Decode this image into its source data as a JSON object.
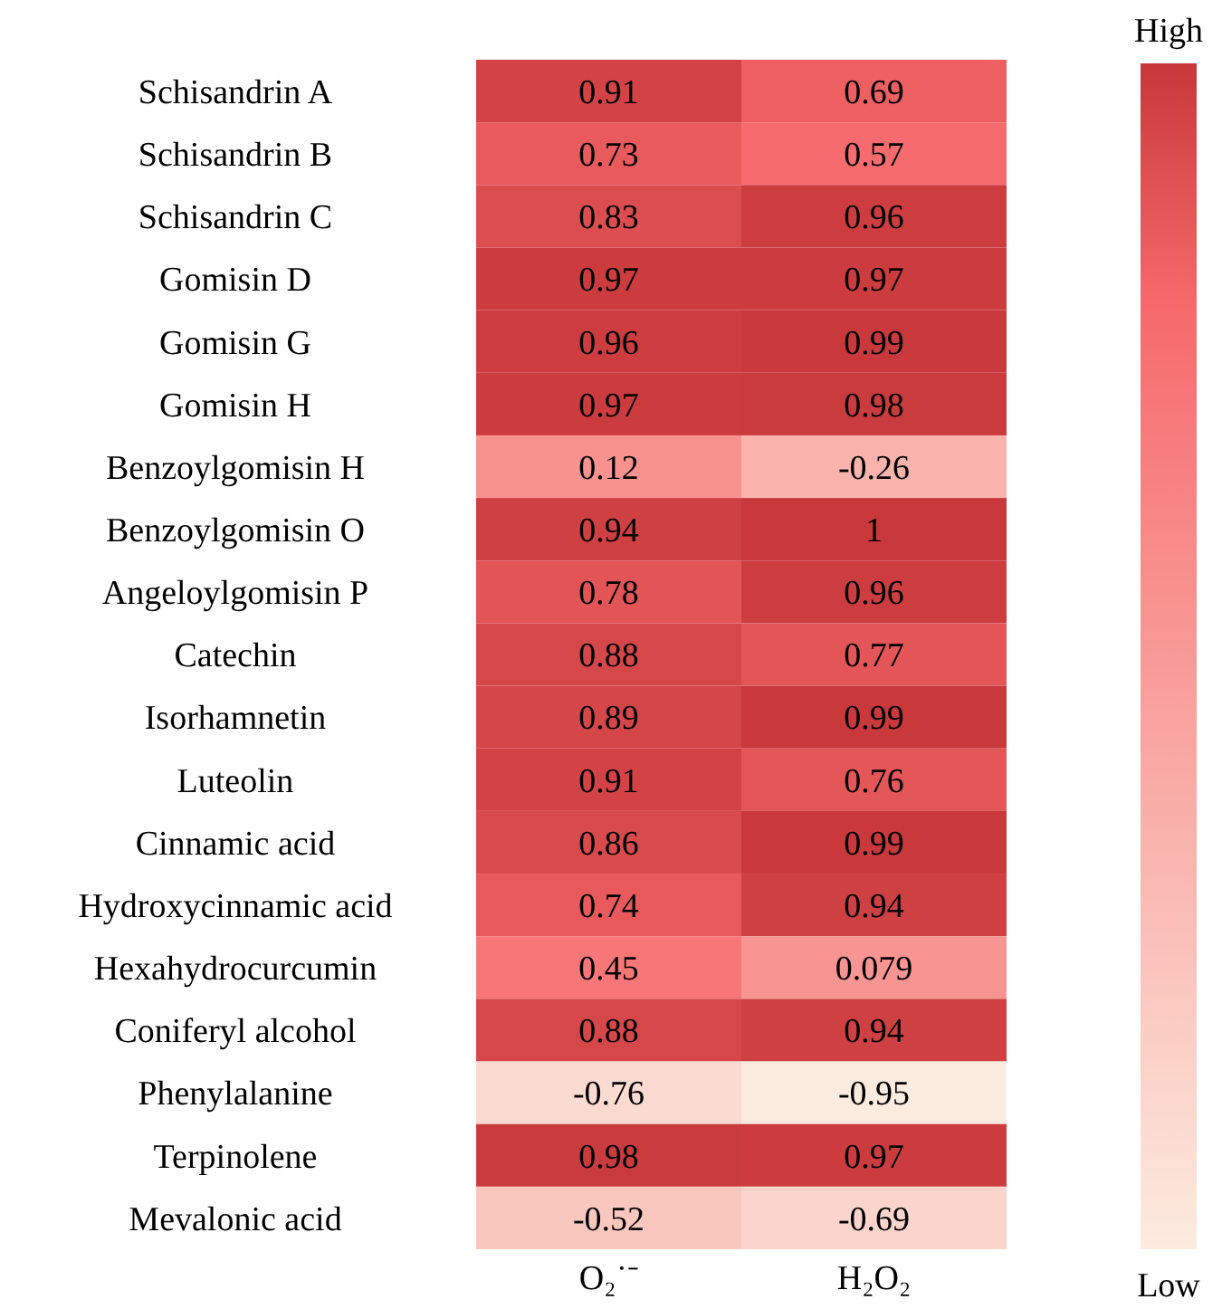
{
  "chart_data": {
    "type": "heatmap",
    "categories": [
      "O₂˙⁻",
      "H₂O₂"
    ],
    "y_categories": [
      "Schisandrin A",
      "Schisandrin B",
      "Schisandrin C",
      "Gomisin D",
      "Gomisin G",
      "Gomisin H",
      "Benzoylgomisin H",
      "Benzoylgomisin O",
      "Angeloylgomisin P",
      "Catechin",
      "Isorhamnetin",
      "Luteolin",
      "Cinnamic acid",
      "Hydroxycinnamic acid",
      "Hexahydrocurcumin",
      "Coniferyl alcohol",
      "Phenylalanine",
      "Terpinolene",
      "Mevalonic acid"
    ],
    "cells": [
      [
        0.91,
        0.69
      ],
      [
        0.73,
        0.57
      ],
      [
        0.83,
        0.96
      ],
      [
        0.97,
        0.97
      ],
      [
        0.96,
        0.99
      ],
      [
        0.97,
        0.98
      ],
      [
        0.12,
        -0.26
      ],
      [
        0.94,
        1
      ],
      [
        0.78,
        0.96
      ],
      [
        0.88,
        0.77
      ],
      [
        0.89,
        0.99
      ],
      [
        0.91,
        0.76
      ],
      [
        0.86,
        0.99
      ],
      [
        0.74,
        0.94
      ],
      [
        0.45,
        0.079
      ],
      [
        0.88,
        0.94
      ],
      [
        -0.76,
        -0.95
      ],
      [
        0.98,
        0.97
      ],
      [
        -0.52,
        -0.69
      ]
    ],
    "data_labels": true,
    "colors": [
      "#fcebdf",
      "#f6696b",
      "#c8383a"
    ],
    "annotations": [
      "High",
      "Low"
    ]
  }
}
